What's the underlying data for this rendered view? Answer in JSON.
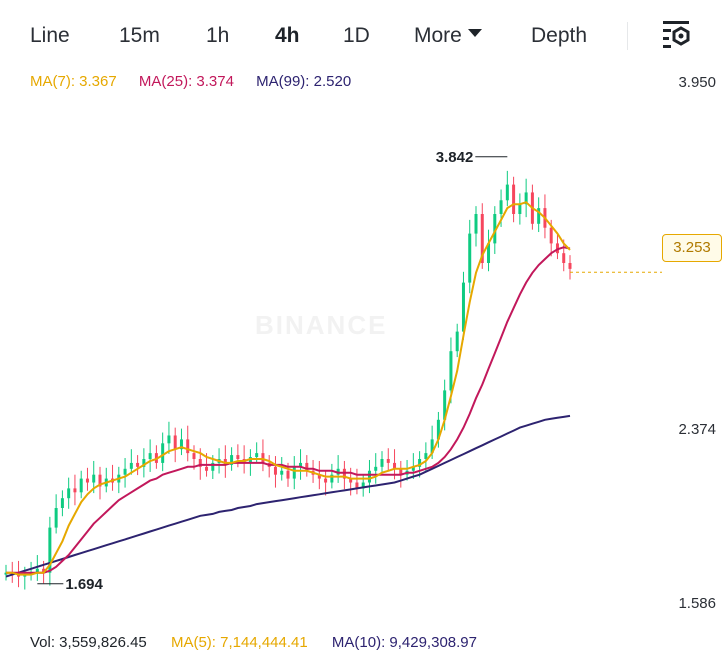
{
  "tabs": [
    {
      "label": "Line",
      "active": false
    },
    {
      "label": "15m",
      "active": false
    },
    {
      "label": "1h",
      "active": false
    },
    {
      "label": "4h",
      "active": true
    },
    {
      "label": "1D",
      "active": false
    },
    {
      "label": "More",
      "active": false
    },
    {
      "label": "Depth",
      "active": false
    }
  ],
  "settings_icon": "chart-settings-icon",
  "ma_legend": [
    {
      "label": "MA(7): 3.367",
      "color": "#e6a800"
    },
    {
      "label": "MA(25): 3.374",
      "color": "#c2185b"
    },
    {
      "label": "MA(99): 2.520",
      "color": "#2d2370"
    }
  ],
  "price_axis": [
    "3.950",
    "2.374",
    "1.586"
  ],
  "current_price": "3.253",
  "annotations": {
    "high": "3.842",
    "low": "1.694"
  },
  "volume_legend": [
    {
      "label": "Vol: 3,559,826.45",
      "color": "#1e2329"
    },
    {
      "label": "MA(5): 7,144,444.41",
      "color": "#e6a800"
    },
    {
      "label": "MA(10): 9,429,308.97",
      "color": "#2d2370"
    }
  ],
  "colors": {
    "up": "#0ecb81",
    "down": "#f6465d",
    "ma7": "#e6a800",
    "ma25": "#c2185b",
    "ma99": "#2d2370"
  },
  "chart_data": {
    "type": "candlestick",
    "y_ticks": [
      3.95,
      2.374,
      1.586
    ],
    "ylim": [
      1.55,
      4.05
    ],
    "current": 3.253,
    "high": 3.842,
    "low": 1.694,
    "closes": [
      1.72,
      1.71,
      1.7,
      1.71,
      1.72,
      1.74,
      1.72,
      1.95,
      2.05,
      2.1,
      2.15,
      2.13,
      2.2,
      2.18,
      2.22,
      2.16,
      2.2,
      2.18,
      2.22,
      2.25,
      2.28,
      2.26,
      2.3,
      2.33,
      2.28,
      2.38,
      2.42,
      2.35,
      2.4,
      2.33,
      2.3,
      2.26,
      2.24,
      2.28,
      2.3,
      2.27,
      2.32,
      2.3,
      2.28,
      2.31,
      2.33,
      2.28,
      2.26,
      2.22,
      2.24,
      2.2,
      2.26,
      2.28,
      2.24,
      2.22,
      2.2,
      2.18,
      2.22,
      2.25,
      2.2,
      2.18,
      2.15,
      2.18,
      2.24,
      2.26,
      2.3,
      2.28,
      2.25,
      2.22,
      2.24,
      2.26,
      2.3,
      2.33,
      2.4,
      2.5,
      2.65,
      2.85,
      2.95,
      3.2,
      3.45,
      3.55,
      3.3,
      3.4,
      3.55,
      3.62,
      3.7,
      3.55,
      3.6,
      3.66,
      3.5,
      3.58,
      3.48,
      3.4,
      3.35,
      3.3,
      3.27
    ],
    "ma7": [
      1.72,
      1.72,
      1.71,
      1.71,
      1.71,
      1.72,
      1.72,
      1.76,
      1.82,
      1.88,
      1.96,
      2.02,
      2.08,
      2.12,
      2.15,
      2.17,
      2.18,
      2.19,
      2.2,
      2.21,
      2.23,
      2.25,
      2.27,
      2.29,
      2.3,
      2.32,
      2.34,
      2.35,
      2.36,
      2.35,
      2.34,
      2.33,
      2.31,
      2.3,
      2.29,
      2.28,
      2.28,
      2.29,
      2.29,
      2.3,
      2.3,
      2.3,
      2.29,
      2.27,
      2.26,
      2.25,
      2.24,
      2.24,
      2.24,
      2.23,
      2.22,
      2.21,
      2.21,
      2.21,
      2.21,
      2.2,
      2.2,
      2.2,
      2.2,
      2.21,
      2.23,
      2.24,
      2.25,
      2.25,
      2.25,
      2.26,
      2.27,
      2.29,
      2.33,
      2.4,
      2.5,
      2.62,
      2.75,
      2.93,
      3.1,
      3.25,
      3.34,
      3.4,
      3.46,
      3.52,
      3.58,
      3.6,
      3.6,
      3.61,
      3.58,
      3.56,
      3.53,
      3.49,
      3.45,
      3.4,
      3.367
    ],
    "ma25": [
      1.72,
      1.72,
      1.72,
      1.72,
      1.72,
      1.72,
      1.72,
      1.73,
      1.75,
      1.78,
      1.81,
      1.85,
      1.89,
      1.93,
      1.97,
      2.0,
      2.03,
      2.06,
      2.09,
      2.11,
      2.13,
      2.15,
      2.17,
      2.19,
      2.2,
      2.22,
      2.23,
      2.24,
      2.25,
      2.26,
      2.26,
      2.27,
      2.27,
      2.27,
      2.27,
      2.27,
      2.28,
      2.28,
      2.28,
      2.28,
      2.28,
      2.28,
      2.27,
      2.27,
      2.27,
      2.26,
      2.26,
      2.26,
      2.25,
      2.25,
      2.24,
      2.24,
      2.24,
      2.23,
      2.23,
      2.23,
      2.22,
      2.22,
      2.22,
      2.22,
      2.22,
      2.22,
      2.22,
      2.22,
      2.23,
      2.23,
      2.24,
      2.25,
      2.26,
      2.28,
      2.31,
      2.35,
      2.4,
      2.46,
      2.53,
      2.61,
      2.68,
      2.76,
      2.84,
      2.92,
      3.0,
      3.07,
      3.14,
      3.2,
      3.25,
      3.29,
      3.32,
      3.35,
      3.37,
      3.38,
      3.374
    ],
    "ma99": [
      1.7,
      1.71,
      1.72,
      1.73,
      1.74,
      1.75,
      1.76,
      1.77,
      1.78,
      1.79,
      1.8,
      1.81,
      1.82,
      1.83,
      1.84,
      1.85,
      1.86,
      1.87,
      1.88,
      1.89,
      1.9,
      1.91,
      1.92,
      1.93,
      1.94,
      1.95,
      1.96,
      1.97,
      1.98,
      1.99,
      2.0,
      2.01,
      2.015,
      2.02,
      2.03,
      2.035,
      2.04,
      2.05,
      2.055,
      2.06,
      2.07,
      2.075,
      2.08,
      2.085,
      2.09,
      2.095,
      2.1,
      2.105,
      2.11,
      2.115,
      2.12,
      2.125,
      2.13,
      2.135,
      2.14,
      2.145,
      2.15,
      2.155,
      2.16,
      2.165,
      2.17,
      2.175,
      2.18,
      2.19,
      2.2,
      2.21,
      2.22,
      2.235,
      2.25,
      2.265,
      2.28,
      2.295,
      2.31,
      2.325,
      2.34,
      2.355,
      2.37,
      2.385,
      2.4,
      2.415,
      2.43,
      2.445,
      2.46,
      2.47,
      2.48,
      2.49,
      2.5,
      2.505,
      2.51,
      2.515,
      2.52
    ]
  }
}
